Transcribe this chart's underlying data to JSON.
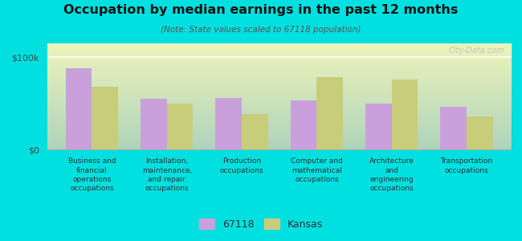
{
  "title": "Occupation by median earnings in the past 12 months",
  "subtitle": "(Note: State values scaled to 67118 population)",
  "categories": [
    "Business and\nfinancial\noperations\noccupations",
    "Installation,\nmaintenance,\nand repair\noccupations",
    "Production\noccupations",
    "Computer and\nmathematical\noccupations",
    "Architecture\nand\nengineering\noccupations",
    "Transportation\noccupations"
  ],
  "values_67118": [
    88000,
    55000,
    56000,
    53000,
    50000,
    46000
  ],
  "values_kansas": [
    68000,
    50000,
    38000,
    78000,
    76000,
    36000
  ],
  "color_67118": "#c9a0dc",
  "color_kansas": "#c8cd7a",
  "background_outer": "#00e0e0",
  "ylabel_100k": "$100k",
  "ylabel_zero": "$0",
  "ylim": [
    0,
    115000
  ],
  "yticks": [
    0,
    100000
  ],
  "legend_labels": [
    "67118",
    "Kansas"
  ],
  "watermark": "City-Data.com"
}
